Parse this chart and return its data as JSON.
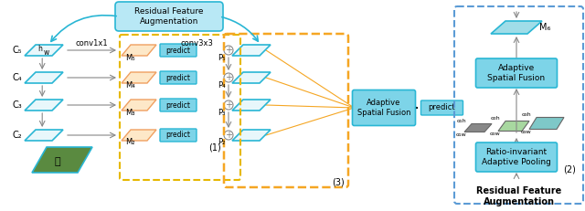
{
  "bg_color": "#ffffff",
  "cyan": "#29b6d4",
  "cyan_light": "#7dd4e8",
  "cyan_fill": "#b8e8f5",
  "orange_line": "#f5a623",
  "orange_dashed": "#f5a623",
  "blue_dashed": "#5b9bd5",
  "gray_arrow": "#888888",
  "black": "#000000",
  "parallelogram_stroke": "#29b6d4",
  "parallelogram_fill_cyan": "#e8f7fb",
  "parallelogram_fill_orange": "#fde8c8",
  "parallelogram_fill_green": "#c8e8d0",
  "predict_fill": "#7dd4e8",
  "fusion_fill": "#7dd4e8",
  "title": "Residual Feature\nAugmentation",
  "bottom_title": "Residual Feature\nAugmentation",
  "label_c5": "C₅",
  "label_c4": "C₄",
  "label_c3": "C₃",
  "label_c2": "C₂",
  "label_h": "h",
  "label_w": "w",
  "label_m5": "M₅",
  "label_m4": "M₄",
  "label_m3": "M₃",
  "label_m2": "M₂",
  "label_p5": "P₅",
  "label_p4": "P₄",
  "label_p3": "P₃",
  "label_p2": "P₂",
  "label_m6": "M₆",
  "label_conv1x1": "conv1x1",
  "label_conv3x3": "conv3x3",
  "label_1": "(1)",
  "label_2": "(2)",
  "label_3": "(3)",
  "label_predict": "predict",
  "label_adaptive": "Adaptive\nSpatial Fusion",
  "label_ratio": "Ratio-invariant\nAdaptive Pooling",
  "alpha_labels": [
    "α₁h",
    "α₂h",
    "α₃h",
    "α₁w",
    "α₂w",
    "α₃w"
  ]
}
